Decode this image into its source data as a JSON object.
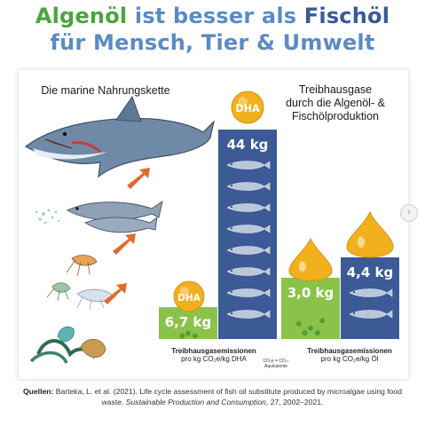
{
  "title": {
    "algenoel": "Algenöl",
    "ist_besser_als": "ist besser als",
    "fischoel": "Fischöl",
    "line2": "für Mensch, Tier & Umwelt"
  },
  "food_chain_label": "Die marine Nahrungskette",
  "emissions_label_line1": "Treibhausgase",
  "emissions_label_line2": "durch die Algenöl- &",
  "emissions_label_line3": "Fischölproduktion",
  "dha_badge": "DHA",
  "colors": {
    "green": "#4aa63c",
    "blue": "#3b5a96",
    "light_green": "#8bc34a",
    "gold": "#f2b01e"
  },
  "chart_data": [
    {
      "type": "bar",
      "categories": [
        "Algenöl",
        "Fischöl"
      ],
      "values": [
        6.7,
        44
      ],
      "value_labels": [
        "6,7 kg",
        "44 kg"
      ],
      "xlabel_line1": "Treibhausgasemissionen",
      "xlabel_line2": "pro kg CO₂e/kg DHA"
    },
    {
      "type": "bar",
      "categories": [
        "Algenöl",
        "Fischöl"
      ],
      "values": [
        3.0,
        4.4
      ],
      "value_labels": [
        "3,0 kg",
        "4,4 kg"
      ],
      "xlabel_line1": "Treibhausgasemissionen",
      "xlabel_line2": "pro kg CO₂e/kg Öl"
    }
  ],
  "co2_note_line1": "CO₂e = CO₂-",
  "co2_note_line2": "Äquivalente",
  "source": {
    "prefix": "Quellen:",
    "text": " Barteka, L. et al. (2021). Life cycle assessment of fish oil substitute produced by microalgae using food waste. ",
    "journal": "Sustainable Production and Consumption",
    "tail": ", 27, 2002–2021."
  }
}
